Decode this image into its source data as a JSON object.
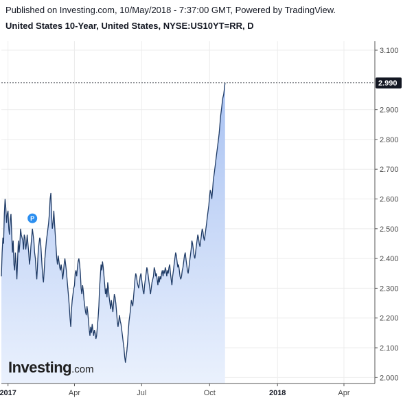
{
  "header": {
    "published": "Published on Investing.com, 10/May/2018 - 7:37:00 GMT, Powered by TradingView.",
    "title": "United States 10-Year, United States, NYSE:US10YT=RR, D"
  },
  "logo": {
    "main": "Investing",
    "suffix": ".com"
  },
  "colors": {
    "line": "#1f3b66",
    "fill_top": "#a9c2f2",
    "fill_bottom": "#eaf1fd",
    "last_label_bg": "#131722",
    "marker": "#2c8ff0"
  },
  "chart_data": {
    "type": "area",
    "x_unit": "days since 2017-01-01",
    "x_ticks": [
      {
        "label": "2017",
        "x": 0,
        "bold": true
      },
      {
        "label": "Apr",
        "x": 90,
        "bold": false
      },
      {
        "label": "Jul",
        "x": 181,
        "bold": false
      },
      {
        "label": "Oct",
        "x": 273,
        "bold": false
      },
      {
        "label": "2018",
        "x": 365,
        "bold": true
      },
      {
        "label": "Apr",
        "x": 455,
        "bold": false
      }
    ],
    "y_ticks": [
      "2.000",
      "2.100",
      "2.200",
      "2.300",
      "2.400",
      "2.500",
      "2.600",
      "2.700",
      "2.800",
      "2.900",
      "3.100"
    ],
    "ylim": [
      1.98,
      3.13
    ],
    "xlim": [
      -9,
      495
    ],
    "last_value": "2.990",
    "marker_label": "P",
    "marker": {
      "x": 33,
      "y": 2.535
    },
    "points": [
      [
        -9,
        2.34
      ],
      [
        -8,
        2.42
      ],
      [
        -7,
        2.47
      ],
      [
        -6,
        2.45
      ],
      [
        -5,
        2.55
      ],
      [
        -4,
        2.6
      ],
      [
        -3,
        2.57
      ],
      [
        -2,
        2.52
      ],
      [
        -1,
        2.55
      ],
      [
        0,
        2.56
      ],
      [
        1,
        2.5
      ],
      [
        2,
        2.48
      ],
      [
        3,
        2.53
      ],
      [
        4,
        2.55
      ],
      [
        5,
        2.48
      ],
      [
        6,
        2.42
      ],
      [
        7,
        2.46
      ],
      [
        8,
        2.38
      ],
      [
        9,
        2.36
      ],
      [
        10,
        2.42
      ],
      [
        11,
        2.38
      ],
      [
        12,
        2.33
      ],
      [
        13,
        2.4
      ],
      [
        14,
        2.46
      ],
      [
        15,
        2.42
      ],
      [
        16,
        2.45
      ],
      [
        17,
        2.5
      ],
      [
        18,
        2.48
      ],
      [
        19,
        2.47
      ],
      [
        20,
        2.46
      ],
      [
        21,
        2.43
      ],
      [
        22,
        2.48
      ],
      [
        23,
        2.47
      ],
      [
        24,
        2.43
      ],
      [
        25,
        2.45
      ],
      [
        26,
        2.48
      ],
      [
        27,
        2.45
      ],
      [
        28,
        2.42
      ],
      [
        29,
        2.38
      ],
      [
        30,
        2.4
      ],
      [
        31,
        2.44
      ],
      [
        32,
        2.47
      ],
      [
        33,
        2.5
      ],
      [
        34,
        2.48
      ],
      [
        35,
        2.46
      ],
      [
        36,
        2.42
      ],
      [
        37,
        2.4
      ],
      [
        38,
        2.36
      ],
      [
        39,
        2.33
      ],
      [
        40,
        2.38
      ],
      [
        41,
        2.43
      ],
      [
        42,
        2.45
      ],
      [
        43,
        2.47
      ],
      [
        44,
        2.46
      ],
      [
        45,
        2.42
      ],
      [
        46,
        2.38
      ],
      [
        47,
        2.34
      ],
      [
        48,
        2.32
      ],
      [
        49,
        2.36
      ],
      [
        50,
        2.4
      ],
      [
        51,
        2.43
      ],
      [
        52,
        2.46
      ],
      [
        53,
        2.48
      ],
      [
        54,
        2.5
      ],
      [
        55,
        2.52
      ],
      [
        56,
        2.55
      ],
      [
        57,
        2.6
      ],
      [
        58,
        2.62
      ],
      [
        59,
        2.55
      ],
      [
        60,
        2.5
      ],
      [
        61,
        2.52
      ],
      [
        62,
        2.56
      ],
      [
        63,
        2.52
      ],
      [
        64,
        2.48
      ],
      [
        65,
        2.44
      ],
      [
        66,
        2.4
      ],
      [
        67,
        2.38
      ],
      [
        68,
        2.41
      ],
      [
        69,
        2.39
      ],
      [
        70,
        2.37
      ],
      [
        71,
        2.36
      ],
      [
        72,
        2.38
      ],
      [
        73,
        2.36
      ],
      [
        74,
        2.33
      ],
      [
        75,
        2.35
      ],
      [
        76,
        2.38
      ],
      [
        77,
        2.4
      ],
      [
        78,
        2.38
      ],
      [
        79,
        2.36
      ],
      [
        80,
        2.33
      ],
      [
        81,
        2.3
      ],
      [
        82,
        2.27
      ],
      [
        83,
        2.24
      ],
      [
        84,
        2.2
      ],
      [
        85,
        2.17
      ],
      [
        86,
        2.23
      ],
      [
        87,
        2.26
      ],
      [
        88,
        2.28
      ],
      [
        89,
        2.3
      ],
      [
        90,
        2.31
      ],
      [
        91,
        2.35
      ],
      [
        92,
        2.36
      ],
      [
        93,
        2.34
      ],
      [
        94,
        2.37
      ],
      [
        95,
        2.39
      ],
      [
        96,
        2.4
      ],
      [
        97,
        2.38
      ],
      [
        98,
        2.35
      ],
      [
        99,
        2.3
      ],
      [
        100,
        2.28
      ],
      [
        101,
        2.31
      ],
      [
        102,
        2.29
      ],
      [
        103,
        2.26
      ],
      [
        104,
        2.24
      ],
      [
        105,
        2.22
      ],
      [
        106,
        2.21
      ],
      [
        107,
        2.24
      ],
      [
        108,
        2.22
      ],
      [
        109,
        2.19
      ],
      [
        110,
        2.16
      ],
      [
        111,
        2.14
      ],
      [
        112,
        2.17
      ],
      [
        113,
        2.15
      ],
      [
        114,
        2.18
      ],
      [
        115,
        2.16
      ],
      [
        116,
        2.14
      ],
      [
        117,
        2.16
      ],
      [
        118,
        2.15
      ],
      [
        119,
        2.13
      ],
      [
        120,
        2.14
      ],
      [
        121,
        2.17
      ],
      [
        122,
        2.2
      ],
      [
        123,
        2.24
      ],
      [
        124,
        2.3
      ],
      [
        125,
        2.34
      ],
      [
        126,
        2.38
      ],
      [
        127,
        2.36
      ],
      [
        128,
        2.39
      ],
      [
        129,
        2.37
      ],
      [
        130,
        2.34
      ],
      [
        131,
        2.31
      ],
      [
        132,
        2.28
      ],
      [
        133,
        2.3
      ],
      [
        134,
        2.27
      ],
      [
        135,
        2.32
      ],
      [
        136,
        2.3
      ],
      [
        137,
        2.27
      ],
      [
        138,
        2.25
      ],
      [
        139,
        2.23
      ],
      [
        140,
        2.26
      ],
      [
        141,
        2.24
      ],
      [
        142,
        2.22
      ],
      [
        143,
        2.25
      ],
      [
        144,
        2.28
      ],
      [
        145,
        2.27
      ],
      [
        146,
        2.25
      ],
      [
        147,
        2.22
      ],
      [
        148,
        2.19
      ],
      [
        149,
        2.17
      ],
      [
        150,
        2.19
      ],
      [
        151,
        2.21
      ],
      [
        152,
        2.19
      ],
      [
        153,
        2.18
      ],
      [
        154,
        2.16
      ],
      [
        155,
        2.14
      ],
      [
        156,
        2.12
      ],
      [
        157,
        2.1
      ],
      [
        158,
        2.07
      ],
      [
        159,
        2.05
      ],
      [
        160,
        2.07
      ],
      [
        161,
        2.09
      ],
      [
        162,
        2.12
      ],
      [
        163,
        2.16
      ],
      [
        164,
        2.19
      ],
      [
        165,
        2.21
      ],
      [
        166,
        2.23
      ],
      [
        167,
        2.26
      ],
      [
        168,
        2.25
      ],
      [
        169,
        2.24
      ],
      [
        170,
        2.27
      ],
      [
        171,
        2.3
      ],
      [
        172,
        2.33
      ],
      [
        173,
        2.35
      ],
      [
        174,
        2.34
      ],
      [
        175,
        2.32
      ],
      [
        176,
        2.31
      ],
      [
        177,
        2.3
      ],
      [
        178,
        2.32
      ],
      [
        179,
        2.34
      ],
      [
        180,
        2.35
      ],
      [
        181,
        2.33
      ],
      [
        182,
        2.31
      ],
      [
        183,
        2.29
      ],
      [
        184,
        2.28
      ],
      [
        185,
        2.31
      ],
      [
        186,
        2.33
      ],
      [
        187,
        2.35
      ],
      [
        188,
        2.37
      ],
      [
        189,
        2.36
      ],
      [
        190,
        2.34
      ],
      [
        191,
        2.32
      ],
      [
        192,
        2.3
      ],
      [
        193,
        2.28
      ],
      [
        194,
        2.3
      ],
      [
        195,
        2.32
      ],
      [
        196,
        2.33
      ],
      [
        197,
        2.34
      ],
      [
        198,
        2.37
      ],
      [
        199,
        2.36
      ],
      [
        200,
        2.34
      ],
      [
        201,
        2.35
      ],
      [
        202,
        2.33
      ],
      [
        203,
        2.31
      ],
      [
        204,
        2.34
      ],
      [
        205,
        2.32
      ],
      [
        206,
        2.34
      ],
      [
        207,
        2.33
      ],
      [
        208,
        2.35
      ],
      [
        209,
        2.36
      ],
      [
        210,
        2.34
      ],
      [
        211,
        2.36
      ],
      [
        212,
        2.35
      ],
      [
        213,
        2.37
      ],
      [
        214,
        2.36
      ],
      [
        215,
        2.34
      ],
      [
        216,
        2.36
      ],
      [
        217,
        2.35
      ],
      [
        218,
        2.37
      ],
      [
        219,
        2.38
      ],
      [
        220,
        2.35
      ],
      [
        221,
        2.33
      ],
      [
        222,
        2.31
      ],
      [
        223,
        2.34
      ],
      [
        224,
        2.36
      ],
      [
        225,
        2.38
      ],
      [
        226,
        2.4
      ],
      [
        227,
        2.42
      ],
      [
        228,
        2.41
      ],
      [
        229,
        2.39
      ],
      [
        230,
        2.37
      ],
      [
        231,
        2.38
      ],
      [
        232,
        2.36
      ],
      [
        233,
        2.34
      ],
      [
        234,
        2.33
      ],
      [
        235,
        2.34
      ],
      [
        236,
        2.36
      ],
      [
        237,
        2.37
      ],
      [
        238,
        2.39
      ],
      [
        239,
        2.41
      ],
      [
        240,
        2.42
      ],
      [
        241,
        2.4
      ],
      [
        242,
        2.38
      ],
      [
        243,
        2.36
      ],
      [
        244,
        2.35
      ],
      [
        245,
        2.37
      ],
      [
        246,
        2.39
      ],
      [
        247,
        2.41
      ],
      [
        248,
        2.43
      ],
      [
        249,
        2.46
      ],
      [
        250,
        2.45
      ],
      [
        251,
        2.43
      ],
      [
        252,
        2.41
      ],
      [
        253,
        2.4
      ],
      [
        254,
        2.42
      ],
      [
        255,
        2.44
      ],
      [
        256,
        2.46
      ],
      [
        257,
        2.48
      ],
      [
        258,
        2.47
      ],
      [
        259,
        2.45
      ],
      [
        260,
        2.44
      ],
      [
        261,
        2.46
      ],
      [
        262,
        2.48
      ],
      [
        263,
        2.5
      ],
      [
        264,
        2.49
      ],
      [
        265,
        2.47
      ],
      [
        266,
        2.46
      ],
      [
        267,
        2.48
      ],
      [
        268,
        2.5
      ],
      [
        269,
        2.52
      ],
      [
        270,
        2.54
      ],
      [
        271,
        2.56
      ],
      [
        272,
        2.58
      ],
      [
        273,
        2.61
      ],
      [
        274,
        2.63
      ],
      [
        275,
        2.62
      ],
      [
        276,
        2.6
      ],
      [
        277,
        2.63
      ],
      [
        278,
        2.66
      ],
      [
        279,
        2.68
      ],
      [
        280,
        2.7
      ],
      [
        281,
        2.72
      ],
      [
        282,
        2.74
      ],
      [
        283,
        2.76
      ],
      [
        284,
        2.78
      ],
      [
        285,
        2.8
      ],
      [
        286,
        2.82
      ],
      [
        287,
        2.85
      ],
      [
        288,
        2.88
      ],
      [
        289,
        2.9
      ],
      [
        290,
        2.92
      ],
      [
        291,
        2.94
      ],
      [
        292,
        2.95
      ],
      [
        293,
        2.97
      ],
      [
        294,
        2.99
      ]
    ]
  }
}
